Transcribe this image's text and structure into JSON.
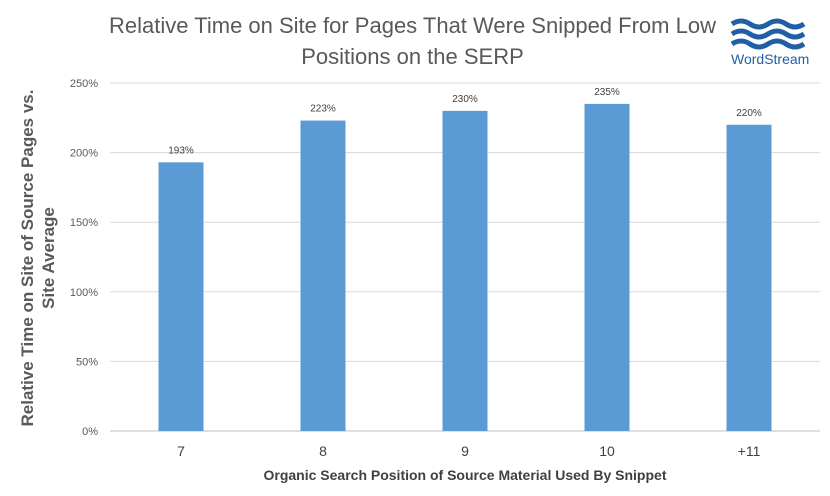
{
  "chart_data": {
    "type": "bar",
    "title_lines": [
      "Relative Time on Site for Pages That Were Snipped From Low",
      "Positions on the SERP"
    ],
    "ylabel_lines": [
      "Relative Time on Site  of Source Pages vs.",
      "Site Average"
    ],
    "xlabel": "Organic Search Position of Source Material Used By Snippet",
    "categories": [
      "7",
      "8",
      "9",
      "10",
      "+11"
    ],
    "values": [
      193,
      223,
      230,
      235,
      220
    ],
    "value_labels": [
      "193%",
      "223%",
      "230%",
      "235%",
      "220%"
    ],
    "yticks": [
      0,
      50,
      100,
      150,
      200,
      250
    ],
    "ytick_labels": [
      "0%",
      "50%",
      "100%",
      "150%",
      "200%",
      "250%"
    ],
    "ylim": [
      0,
      250
    ],
    "grid": true,
    "bar_color": "#5b9bd5"
  },
  "logo": {
    "text": "WordStream",
    "color": "#1f5fa6"
  }
}
